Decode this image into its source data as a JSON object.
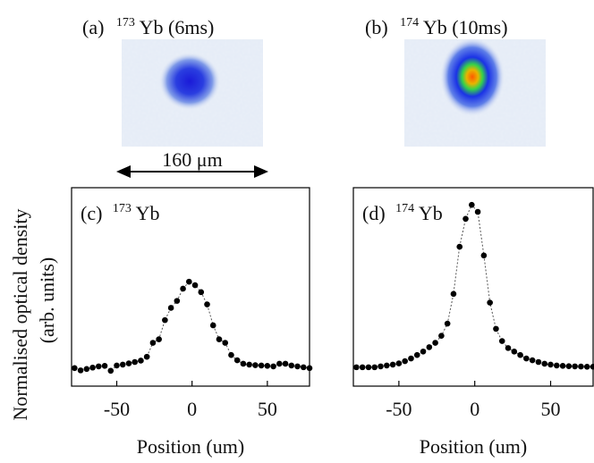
{
  "figure": {
    "ylabel_line1": "Normalised optical density",
    "ylabel_line2": "(arb. units)",
    "scale_bar_label": "160 μm",
    "colors": {
      "axis": "#000000",
      "marker": "#000000",
      "fit": "#555555"
    }
  },
  "images": [
    {
      "label": "(a)",
      "isotope": "173",
      "element": "Yb",
      "time": " (6ms)",
      "peak": 0.45,
      "aspect": 1.0
    },
    {
      "label": "(b)",
      "isotope": "174",
      "element": "Yb",
      "time": " (10ms)",
      "peak": 1.0,
      "aspect": 1.3
    }
  ],
  "chart_data": [
    {
      "type": "scatter",
      "panel": "(c)",
      "isotope": "173",
      "element": "Yb",
      "xlabel": "Position (um)",
      "ylabel": "Normalised optical density (arb. units)",
      "xlim": [
        -80,
        78
      ],
      "ylim": [
        0,
        1
      ],
      "xticks": [
        -50,
        0,
        50
      ],
      "x": [
        -78,
        -74,
        -70,
        -66,
        -62,
        -58,
        -54,
        -50,
        -46,
        -42,
        -38,
        -34,
        -30,
        -26,
        -22,
        -18,
        -14,
        -10,
        -6,
        -2,
        2,
        6,
        10,
        14,
        18,
        22,
        26,
        30,
        34,
        38,
        42,
        46,
        50,
        54,
        58,
        62,
        66,
        70,
        74,
        78
      ],
      "y": [
        0.035,
        0.022,
        0.03,
        0.038,
        0.045,
        0.048,
        0.02,
        0.05,
        0.055,
        0.062,
        0.07,
        0.078,
        0.1,
        0.18,
        0.2,
        0.31,
        0.38,
        0.42,
        0.49,
        0.53,
        0.51,
        0.47,
        0.4,
        0.28,
        0.2,
        0.18,
        0.11,
        0.08,
        0.06,
        0.055,
        0.052,
        0.05,
        0.048,
        0.045,
        0.06,
        0.06,
        0.05,
        0.045,
        0.04,
        0.035
      ]
    },
    {
      "type": "scatter",
      "panel": "(d)",
      "isotope": "174",
      "element": "Yb",
      "xlabel": "Position (um)",
      "ylabel": "Normalised optical density (arb. units)",
      "xlim": [
        -80,
        78
      ],
      "ylim": [
        0,
        1
      ],
      "xticks": [
        -50,
        0,
        50
      ],
      "x": [
        -78,
        -74,
        -70,
        -66,
        -62,
        -58,
        -54,
        -50,
        -46,
        -42,
        -38,
        -34,
        -30,
        -26,
        -22,
        -18,
        -14,
        -10,
        -6,
        -2,
        2,
        6,
        10,
        14,
        18,
        22,
        26,
        30,
        34,
        38,
        42,
        46,
        50,
        54,
        58,
        62,
        66,
        70,
        74,
        78
      ],
      "y": [
        0.04,
        0.04,
        0.04,
        0.04,
        0.045,
        0.05,
        0.055,
        0.062,
        0.075,
        0.09,
        0.11,
        0.13,
        0.155,
        0.18,
        0.22,
        0.29,
        0.46,
        0.73,
        0.89,
        0.97,
        0.93,
        0.68,
        0.41,
        0.26,
        0.19,
        0.15,
        0.13,
        0.11,
        0.09,
        0.08,
        0.07,
        0.06,
        0.055,
        0.05,
        0.048,
        0.046,
        0.045,
        0.044,
        0.043,
        0.043
      ]
    }
  ]
}
